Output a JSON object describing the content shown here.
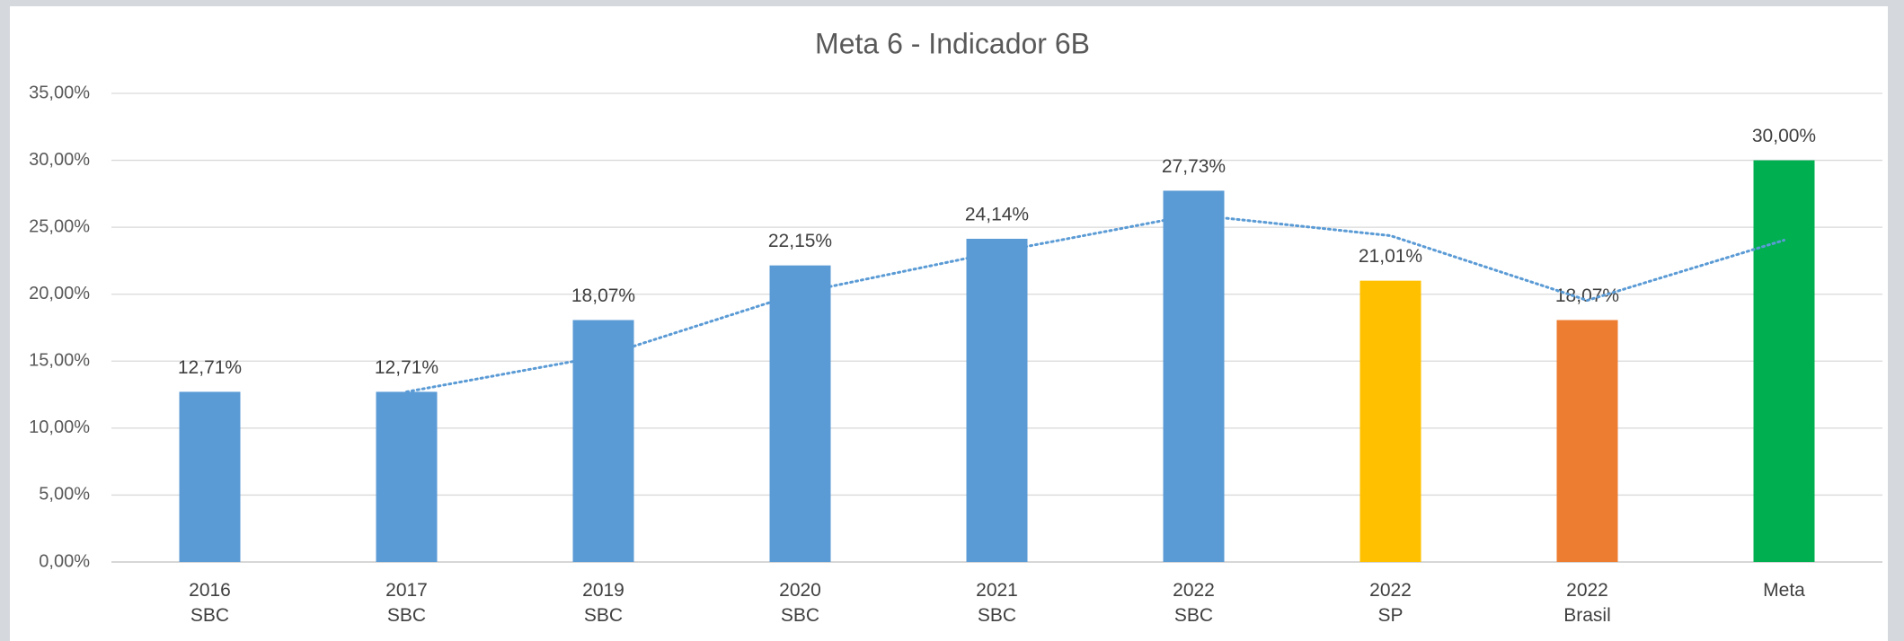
{
  "chart_data": {
    "type": "bar",
    "title": "Meta 6 - Indicador 6B",
    "categories": [
      "2016\nSBC",
      "2017\nSBC",
      "2019\nSBC",
      "2020\nSBC",
      "2021\nSBC",
      "2022\nSBC",
      "2022\nSP",
      "2022\nBrasil",
      "Meta"
    ],
    "values": [
      12.71,
      12.71,
      18.07,
      22.15,
      24.14,
      27.73,
      21.01,
      18.07,
      30.0
    ],
    "value_labels": [
      "12,71%",
      "12,71%",
      "18,07%",
      "22,15%",
      "24,14%",
      "27,73%",
      "21,01%",
      "18,07%",
      "30,00%"
    ],
    "colors": [
      "#5b9bd5",
      "#5b9bd5",
      "#5b9bd5",
      "#5b9bd5",
      "#5b9bd5",
      "#5b9bd5",
      "#ffc000",
      "#ed7d31",
      "#00b050"
    ],
    "ylim": [
      0,
      35
    ],
    "yticks": [
      {
        "value": 0,
        "label": "0,00%"
      },
      {
        "value": 5,
        "label": "5,00%"
      },
      {
        "value": 10,
        "label": "10,00%"
      },
      {
        "value": 15,
        "label": "15,00%"
      },
      {
        "value": 20,
        "label": "20,00%"
      },
      {
        "value": 25,
        "label": "25,00%"
      },
      {
        "value": 30,
        "label": "30,00%"
      },
      {
        "value": 35,
        "label": "35,00%"
      }
    ],
    "grid": true,
    "trendline": {
      "type": "moving_average",
      "period": 2,
      "color": "#5b9bd5"
    }
  }
}
